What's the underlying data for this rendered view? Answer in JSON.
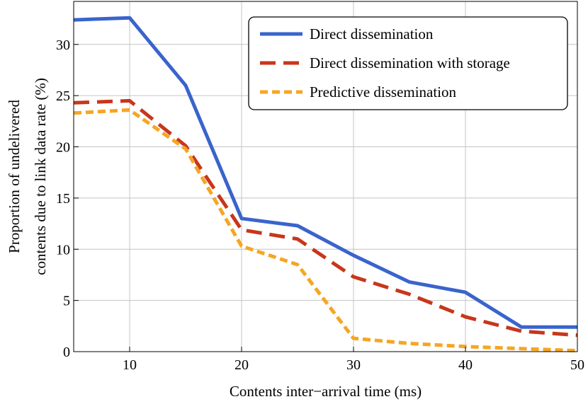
{
  "chart_data": {
    "type": "line",
    "title": "",
    "xlabel": "Contents inter−arrival time (ms)",
    "ylabel_lines": [
      "Proportion of undelivered",
      "contents due to link data rate (%)"
    ],
    "xlim": [
      5,
      50
    ],
    "ylim": [
      0,
      34.2
    ],
    "xticks": [
      10,
      20,
      30,
      40,
      50
    ],
    "yticks": [
      0,
      5,
      10,
      15,
      20,
      25,
      30
    ],
    "grid": true,
    "legend_position": "top-right",
    "series": [
      {
        "name": "Direct dissemination",
        "color": "#3a64cc",
        "style": "solid",
        "x": [
          5,
          10,
          15,
          20,
          25,
          30,
          35,
          40,
          45,
          50
        ],
        "y": [
          32.4,
          32.6,
          26.0,
          13.0,
          12.3,
          9.4,
          6.8,
          5.8,
          2.4,
          2.4
        ]
      },
      {
        "name": "Direct dissemination with storage",
        "color": "#c8361c",
        "style": "dashed",
        "x": [
          5,
          10,
          15,
          20,
          25,
          30,
          35,
          40,
          45,
          50
        ],
        "y": [
          24.3,
          24.5,
          20.1,
          11.9,
          11.0,
          7.3,
          5.6,
          3.4,
          2.0,
          1.6
        ]
      },
      {
        "name": "Predictive dissemination",
        "color": "#f5a623",
        "style": "dotted",
        "x": [
          5,
          10,
          15,
          20,
          25,
          30,
          35,
          40,
          45,
          50
        ],
        "y": [
          23.3,
          23.6,
          19.8,
          10.3,
          8.5,
          1.3,
          0.8,
          0.5,
          0.3,
          0.1
        ]
      }
    ]
  }
}
